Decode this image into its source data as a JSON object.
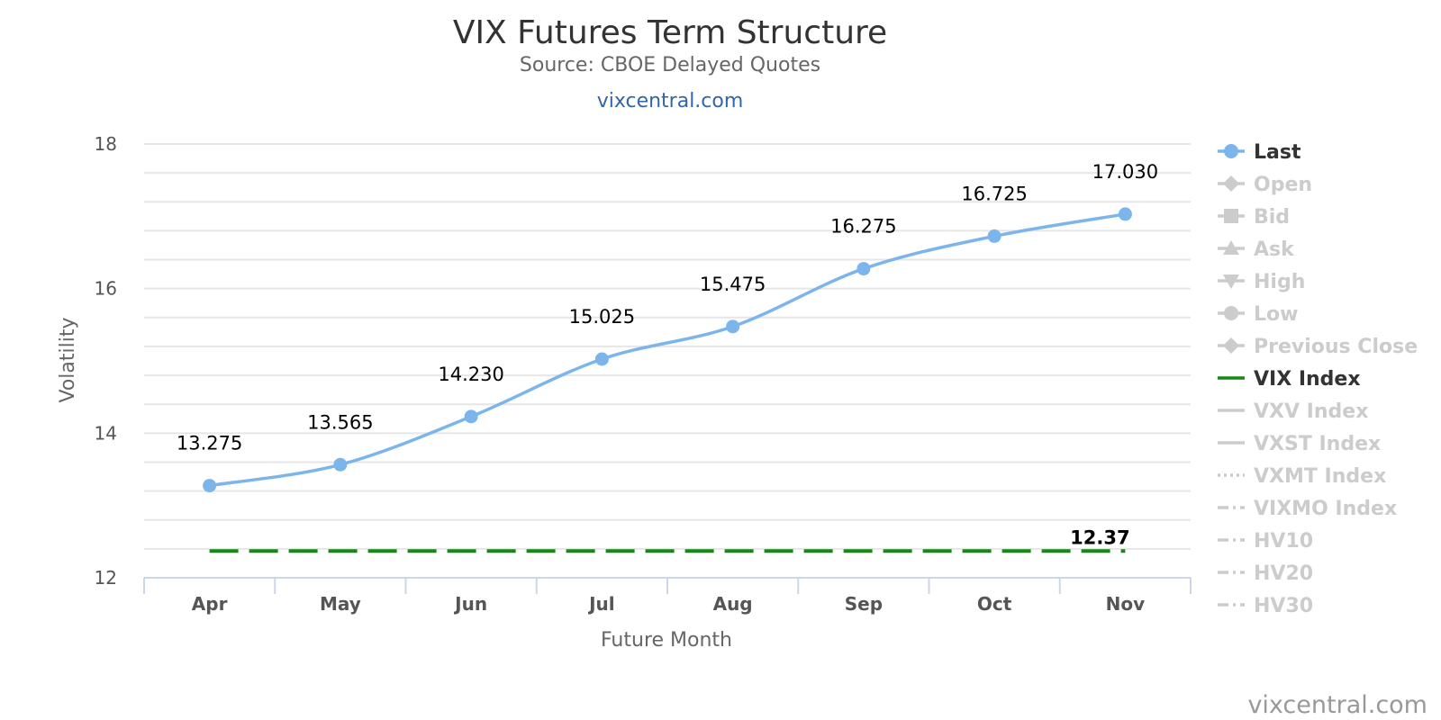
{
  "chart_data": {
    "type": "line",
    "title": "VIX Futures Term Structure",
    "subtitle": "Source: CBOE Delayed Quotes",
    "link": "vixcentral.com",
    "credit": "vixcentral.com",
    "xlabel": "Future Month",
    "ylabel": "Volatility",
    "categories": [
      "Apr",
      "May",
      "Jun",
      "Jul",
      "Aug",
      "Sep",
      "Oct",
      "Nov"
    ],
    "ylim": [
      12,
      18
    ],
    "yticks": [
      12,
      14,
      16,
      18
    ],
    "grid": true,
    "legend_position": "right",
    "series": [
      {
        "name": "Last",
        "values": [
          13.275,
          13.565,
          14.23,
          15.025,
          15.475,
          16.275,
          16.725,
          17.03
        ],
        "labels": [
          "13.275",
          "13.565",
          "14.230",
          "15.025",
          "15.475",
          "16.275",
          "16.725",
          "17.030"
        ],
        "color": "#7cb5ec",
        "style": "spline-markers"
      },
      {
        "name": "VIX Index",
        "values": [
          12.37,
          12.37,
          12.37,
          12.37,
          12.37,
          12.37,
          12.37,
          12.37
        ],
        "end_label": "12.37",
        "color": "#138a13",
        "style": "dashed"
      }
    ],
    "legend": [
      {
        "name": "Last",
        "symbol": "circle",
        "line": "solid",
        "active": true,
        "color": "#7cb5ec"
      },
      {
        "name": "Open",
        "symbol": "diamond",
        "line": "solid",
        "active": false,
        "color": "#cccccc"
      },
      {
        "name": "Bid",
        "symbol": "square",
        "line": "solid",
        "active": false,
        "color": "#cccccc"
      },
      {
        "name": "Ask",
        "symbol": "triangle",
        "line": "solid",
        "active": false,
        "color": "#cccccc"
      },
      {
        "name": "High",
        "symbol": "triangle-down",
        "line": "solid",
        "active": false,
        "color": "#cccccc"
      },
      {
        "name": "Low",
        "symbol": "circle",
        "line": "solid",
        "active": false,
        "color": "#cccccc"
      },
      {
        "name": "Previous Close",
        "symbol": "diamond",
        "line": "solid",
        "active": false,
        "color": "#cccccc"
      },
      {
        "name": "VIX Index",
        "symbol": "none",
        "line": "solid",
        "active": true,
        "color": "#138a13"
      },
      {
        "name": "VXV Index",
        "symbol": "none",
        "line": "solid",
        "active": false,
        "color": "#cccccc"
      },
      {
        "name": "VXST Index",
        "symbol": "none",
        "line": "solid",
        "active": false,
        "color": "#cccccc"
      },
      {
        "name": "VXMT Index",
        "symbol": "none",
        "line": "dotted",
        "active": false,
        "color": "#cccccc"
      },
      {
        "name": "VIXMO Index",
        "symbol": "none",
        "line": "dashdot",
        "active": false,
        "color": "#cccccc"
      },
      {
        "name": "HV10",
        "symbol": "none",
        "line": "dashdot",
        "active": false,
        "color": "#cccccc"
      },
      {
        "name": "HV20",
        "symbol": "none",
        "line": "dashdot",
        "active": false,
        "color": "#cccccc"
      },
      {
        "name": "HV30",
        "symbol": "none",
        "line": "dashdot",
        "active": false,
        "color": "#cccccc"
      }
    ]
  }
}
